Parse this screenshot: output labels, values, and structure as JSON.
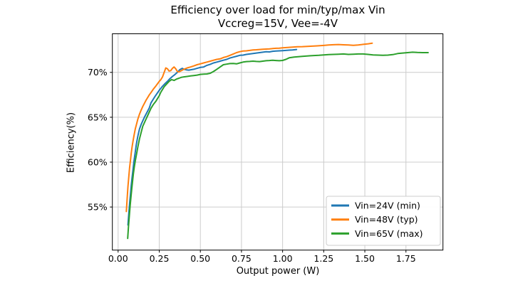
{
  "chart_data": {
    "type": "line",
    "title_line1": "Efficiency over load for min/typ/max Vin",
    "title_line2": "Vccreg=15V, Vee=-4V",
    "xlabel": "Output power (W)",
    "ylabel": "Efficiency(%)",
    "xlim": [
      -0.035,
      1.975
    ],
    "ylim": [
      50.2,
      74.3
    ],
    "grid": true,
    "legend_position": "lower right",
    "colors": {
      "grid": "#cccccc",
      "spine": "#000000",
      "background": "#ffffff",
      "legend_border": "#cccccc"
    },
    "x_ticks": {
      "values": [
        0.0,
        0.25,
        0.5,
        0.75,
        1.0,
        1.25,
        1.5,
        1.75
      ],
      "labels": [
        "0.00",
        "0.25",
        "0.50",
        "0.75",
        "1.00",
        "1.25",
        "1.50",
        "1.75"
      ]
    },
    "y_ticks": {
      "values": [
        55,
        60,
        65,
        70
      ],
      "labels": [
        "55%",
        "60%",
        "65%",
        "70%"
      ]
    },
    "series": [
      {
        "name": "Vin=24V (min)",
        "color": "#1f77b4",
        "points": [
          [
            0.06,
            53.0
          ],
          [
            0.065,
            54.3
          ],
          [
            0.07,
            55.4
          ],
          [
            0.075,
            56.4
          ],
          [
            0.08,
            57.4
          ],
          [
            0.085,
            58.3
          ],
          [
            0.09,
            59.1
          ],
          [
            0.095,
            59.9
          ],
          [
            0.1,
            60.6
          ],
          [
            0.105,
            61.2
          ],
          [
            0.11,
            61.9
          ],
          [
            0.115,
            62.4
          ],
          [
            0.12,
            62.9
          ],
          [
            0.13,
            63.7
          ],
          [
            0.14,
            64.2
          ],
          [
            0.15,
            64.6
          ],
          [
            0.16,
            65.0
          ],
          [
            0.17,
            65.35
          ],
          [
            0.18,
            65.7
          ],
          [
            0.19,
            66.05
          ],
          [
            0.2,
            66.6
          ],
          [
            0.22,
            67.2
          ],
          [
            0.235,
            67.6
          ],
          [
            0.25,
            68.0
          ],
          [
            0.27,
            68.45
          ],
          [
            0.285,
            68.75
          ],
          [
            0.3,
            69.0
          ],
          [
            0.315,
            69.3
          ],
          [
            0.33,
            69.55
          ],
          [
            0.345,
            69.75
          ],
          [
            0.36,
            70.0
          ],
          [
            0.375,
            70.3
          ],
          [
            0.39,
            70.45
          ],
          [
            0.4,
            70.35
          ],
          [
            0.415,
            70.28
          ],
          [
            0.43,
            70.25
          ],
          [
            0.445,
            70.3
          ],
          [
            0.46,
            70.35
          ],
          [
            0.48,
            70.45
          ],
          [
            0.5,
            70.55
          ],
          [
            0.52,
            70.6
          ],
          [
            0.54,
            70.78
          ],
          [
            0.56,
            70.9
          ],
          [
            0.58,
            71.05
          ],
          [
            0.6,
            71.15
          ],
          [
            0.62,
            71.25
          ],
          [
            0.64,
            71.35
          ],
          [
            0.66,
            71.45
          ],
          [
            0.68,
            71.6
          ],
          [
            0.7,
            71.7
          ],
          [
            0.72,
            71.8
          ],
          [
            0.74,
            71.9
          ],
          [
            0.76,
            71.92
          ],
          [
            0.78,
            72.0
          ],
          [
            0.8,
            72.05
          ],
          [
            0.82,
            72.1
          ],
          [
            0.84,
            72.15
          ],
          [
            0.86,
            72.2
          ],
          [
            0.88,
            72.25
          ],
          [
            0.9,
            72.3
          ],
          [
            0.92,
            72.28
          ],
          [
            0.94,
            72.35
          ],
          [
            0.96,
            72.38
          ],
          [
            0.98,
            72.4
          ],
          [
            1.0,
            72.42
          ],
          [
            1.02,
            72.45
          ],
          [
            1.04,
            72.48
          ],
          [
            1.06,
            72.5
          ],
          [
            1.085,
            72.55
          ]
        ]
      },
      {
        "name": "Vin=48V (typ)",
        "color": "#ff7f0e",
        "points": [
          [
            0.05,
            54.5
          ],
          [
            0.055,
            56.0
          ],
          [
            0.06,
            57.3
          ],
          [
            0.065,
            58.4
          ],
          [
            0.07,
            59.4
          ],
          [
            0.075,
            60.2
          ],
          [
            0.08,
            61.0
          ],
          [
            0.085,
            61.7
          ],
          [
            0.09,
            62.3
          ],
          [
            0.095,
            62.8
          ],
          [
            0.1,
            63.3
          ],
          [
            0.105,
            63.75
          ],
          [
            0.11,
            64.1
          ],
          [
            0.12,
            64.8
          ],
          [
            0.13,
            65.35
          ],
          [
            0.14,
            65.8
          ],
          [
            0.15,
            66.2
          ],
          [
            0.16,
            66.55
          ],
          [
            0.17,
            66.9
          ],
          [
            0.18,
            67.2
          ],
          [
            0.19,
            67.5
          ],
          [
            0.2,
            67.75
          ],
          [
            0.215,
            68.15
          ],
          [
            0.23,
            68.5
          ],
          [
            0.24,
            68.75
          ],
          [
            0.25,
            69.0
          ],
          [
            0.26,
            69.2
          ],
          [
            0.27,
            69.5
          ],
          [
            0.28,
            70.0
          ],
          [
            0.29,
            70.5
          ],
          [
            0.3,
            70.4
          ],
          [
            0.31,
            70.15
          ],
          [
            0.32,
            70.2
          ],
          [
            0.33,
            70.45
          ],
          [
            0.34,
            70.6
          ],
          [
            0.35,
            70.4
          ],
          [
            0.36,
            70.1
          ],
          [
            0.37,
            70.05
          ],
          [
            0.38,
            70.15
          ],
          [
            0.39,
            70.25
          ],
          [
            0.4,
            70.35
          ],
          [
            0.42,
            70.5
          ],
          [
            0.44,
            70.6
          ],
          [
            0.46,
            70.72
          ],
          [
            0.48,
            70.85
          ],
          [
            0.5,
            70.95
          ],
          [
            0.52,
            71.05
          ],
          [
            0.54,
            71.15
          ],
          [
            0.56,
            71.25
          ],
          [
            0.58,
            71.35
          ],
          [
            0.6,
            71.45
          ],
          [
            0.62,
            71.5
          ],
          [
            0.64,
            71.65
          ],
          [
            0.66,
            71.75
          ],
          [
            0.68,
            71.9
          ],
          [
            0.7,
            72.05
          ],
          [
            0.72,
            72.2
          ],
          [
            0.74,
            72.3
          ],
          [
            0.76,
            72.38
          ],
          [
            0.78,
            72.4
          ],
          [
            0.8,
            72.45
          ],
          [
            0.82,
            72.5
          ],
          [
            0.84,
            72.52
          ],
          [
            0.86,
            72.55
          ],
          [
            0.88,
            72.58
          ],
          [
            0.9,
            72.6
          ],
          [
            0.92,
            72.62
          ],
          [
            0.94,
            72.65
          ],
          [
            0.96,
            72.68
          ],
          [
            0.98,
            72.7
          ],
          [
            1.0,
            72.74
          ],
          [
            1.03,
            72.78
          ],
          [
            1.06,
            72.82
          ],
          [
            1.09,
            72.85
          ],
          [
            1.12,
            72.87
          ],
          [
            1.15,
            72.9
          ],
          [
            1.18,
            72.92
          ],
          [
            1.21,
            72.95
          ],
          [
            1.25,
            73.0
          ],
          [
            1.28,
            73.05
          ],
          [
            1.31,
            73.08
          ],
          [
            1.34,
            73.1
          ],
          [
            1.37,
            73.07
          ],
          [
            1.4,
            73.05
          ],
          [
            1.43,
            73.02
          ],
          [
            1.46,
            73.05
          ],
          [
            1.49,
            73.12
          ],
          [
            1.52,
            73.18
          ],
          [
            1.545,
            73.25
          ]
        ]
      },
      {
        "name": "Vin=65V (max)",
        "color": "#2ca02c",
        "points": [
          [
            0.058,
            51.5
          ],
          [
            0.063,
            52.8
          ],
          [
            0.068,
            54.0
          ],
          [
            0.073,
            55.1
          ],
          [
            0.078,
            56.1
          ],
          [
            0.083,
            57.0
          ],
          [
            0.088,
            57.9
          ],
          [
            0.093,
            58.7
          ],
          [
            0.098,
            59.4
          ],
          [
            0.105,
            60.2
          ],
          [
            0.11,
            60.7
          ],
          [
            0.12,
            61.7
          ],
          [
            0.13,
            62.6
          ],
          [
            0.14,
            63.3
          ],
          [
            0.15,
            64.0
          ],
          [
            0.16,
            64.4
          ],
          [
            0.17,
            64.8
          ],
          [
            0.18,
            65.2
          ],
          [
            0.19,
            65.6
          ],
          [
            0.2,
            66.0
          ],
          [
            0.215,
            66.45
          ],
          [
            0.23,
            66.8
          ],
          [
            0.24,
            67.1
          ],
          [
            0.25,
            67.4
          ],
          [
            0.26,
            67.8
          ],
          [
            0.27,
            68.1
          ],
          [
            0.28,
            68.4
          ],
          [
            0.29,
            68.6
          ],
          [
            0.3,
            68.8
          ],
          [
            0.31,
            69.0
          ],
          [
            0.325,
            69.2
          ],
          [
            0.34,
            69.1
          ],
          [
            0.355,
            69.25
          ],
          [
            0.37,
            69.35
          ],
          [
            0.385,
            69.45
          ],
          [
            0.4,
            69.5
          ],
          [
            0.42,
            69.55
          ],
          [
            0.44,
            69.6
          ],
          [
            0.46,
            69.65
          ],
          [
            0.48,
            69.7
          ],
          [
            0.5,
            69.78
          ],
          [
            0.52,
            69.8
          ],
          [
            0.54,
            69.82
          ],
          [
            0.56,
            69.9
          ],
          [
            0.58,
            70.1
          ],
          [
            0.6,
            70.35
          ],
          [
            0.62,
            70.6
          ],
          [
            0.64,
            70.85
          ],
          [
            0.66,
            70.92
          ],
          [
            0.68,
            70.98
          ],
          [
            0.7,
            71.0
          ],
          [
            0.72,
            70.95
          ],
          [
            0.74,
            71.05
          ],
          [
            0.76,
            71.15
          ],
          [
            0.78,
            71.2
          ],
          [
            0.8,
            71.22
          ],
          [
            0.82,
            71.25
          ],
          [
            0.84,
            71.22
          ],
          [
            0.86,
            71.2
          ],
          [
            0.88,
            71.25
          ],
          [
            0.9,
            71.3
          ],
          [
            0.92,
            71.32
          ],
          [
            0.94,
            71.35
          ],
          [
            0.96,
            71.32
          ],
          [
            0.98,
            71.3
          ],
          [
            1.0,
            71.33
          ],
          [
            1.02,
            71.45
          ],
          [
            1.04,
            71.62
          ],
          [
            1.07,
            71.7
          ],
          [
            1.12,
            71.78
          ],
          [
            1.17,
            71.85
          ],
          [
            1.22,
            71.9
          ],
          [
            1.25,
            71.95
          ],
          [
            1.28,
            71.98
          ],
          [
            1.31,
            72.0
          ],
          [
            1.34,
            72.03
          ],
          [
            1.37,
            72.05
          ],
          [
            1.4,
            72.0
          ],
          [
            1.43,
            72.03
          ],
          [
            1.46,
            72.05
          ],
          [
            1.49,
            72.05
          ],
          [
            1.52,
            72.0
          ],
          [
            1.55,
            71.95
          ],
          [
            1.58,
            71.92
          ],
          [
            1.61,
            71.9
          ],
          [
            1.64,
            71.92
          ],
          [
            1.67,
            71.98
          ],
          [
            1.7,
            72.1
          ],
          [
            1.73,
            72.15
          ],
          [
            1.76,
            72.2
          ],
          [
            1.79,
            72.25
          ],
          [
            1.82,
            72.22
          ],
          [
            1.85,
            72.2
          ],
          [
            1.885,
            72.2
          ]
        ]
      }
    ]
  }
}
